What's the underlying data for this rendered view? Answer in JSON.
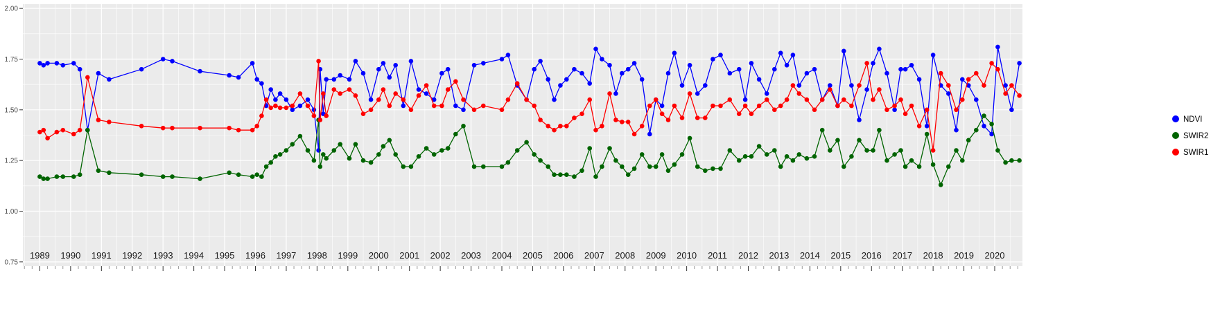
{
  "chart_data": {
    "type": "line",
    "title": "",
    "xlabel": "",
    "ylabel": "",
    "grid": true,
    "legend_position": "right",
    "panel_background": "#ebebeb",
    "grid_color": "#ffffff",
    "xlim": [
      1988.45,
      2020.9
    ],
    "ylim": [
      0.75,
      2.0
    ],
    "x_tick_labels": [
      1989,
      1990,
      1991,
      1992,
      1993,
      1994,
      1995,
      1996,
      1997,
      1998,
      1999,
      2000,
      2001,
      2002,
      2003,
      2004,
      2005,
      2006,
      2007,
      2008,
      2009,
      2010,
      2011,
      2012,
      2013,
      2014,
      2015,
      2016,
      2017,
      2018,
      2019,
      2020
    ],
    "y_tick_labels": [
      "2.00",
      "1.75",
      "1.50",
      "1.25",
      "1.00",
      "0.75"
    ],
    "y_tick_values": [
      2.0,
      1.75,
      1.5,
      1.25,
      1.0,
      0.75
    ],
    "x": [
      1989.0,
      1989.12,
      1989.25,
      1989.55,
      1989.75,
      1990.1,
      1990.3,
      1990.55,
      1990.9,
      1991.25,
      1992.3,
      1993.0,
      1993.3,
      1994.2,
      1995.15,
      1995.45,
      1995.9,
      1996.05,
      1996.2,
      1996.35,
      1996.5,
      1996.65,
      1996.8,
      1997.0,
      1997.2,
      1997.45,
      1997.7,
      1997.9,
      1998.05,
      1998.1,
      1998.2,
      1998.3,
      1998.55,
      1998.75,
      1999.05,
      1999.25,
      1999.5,
      1999.75,
      2000.0,
      2000.15,
      2000.35,
      2000.55,
      2000.8,
      2001.05,
      2001.3,
      2001.55,
      2001.8,
      2002.05,
      2002.25,
      2002.5,
      2002.75,
      2003.1,
      2003.4,
      2004.0,
      2004.2,
      2004.5,
      2004.8,
      2005.05,
      2005.25,
      2005.5,
      2005.7,
      2005.9,
      2006.1,
      2006.35,
      2006.6,
      2006.85,
      2007.05,
      2007.25,
      2007.5,
      2007.7,
      2007.9,
      2008.1,
      2008.3,
      2008.55,
      2008.8,
      2009.0,
      2009.2,
      2009.4,
      2009.6,
      2009.85,
      2010.1,
      2010.35,
      2010.6,
      2010.85,
      2011.1,
      2011.4,
      2011.7,
      2011.9,
      2012.1,
      2012.35,
      2012.6,
      2012.85,
      2013.05,
      2013.25,
      2013.45,
      2013.65,
      2013.9,
      2014.15,
      2014.4,
      2014.65,
      2014.9,
      2015.1,
      2015.35,
      2015.6,
      2015.85,
      2016.05,
      2016.25,
      2016.5,
      2016.75,
      2016.95,
      2017.1,
      2017.3,
      2017.55,
      2017.8,
      2018.0,
      2018.25,
      2018.5,
      2018.75,
      2018.95,
      2019.15,
      2019.4,
      2019.65,
      2019.9,
      2020.1,
      2020.35,
      2020.55,
      2020.8
    ],
    "series": [
      {
        "name": "NDVI",
        "color": "#0000ff",
        "values": [
          1.73,
          1.72,
          1.73,
          1.73,
          1.72,
          1.73,
          1.7,
          1.4,
          1.68,
          1.65,
          1.7,
          1.75,
          1.74,
          1.69,
          1.67,
          1.66,
          1.73,
          1.65,
          1.63,
          1.52,
          1.6,
          1.55,
          1.58,
          1.55,
          1.5,
          1.52,
          1.55,
          1.5,
          1.3,
          1.7,
          1.48,
          1.65,
          1.65,
          1.67,
          1.65,
          1.74,
          1.68,
          1.55,
          1.7,
          1.73,
          1.66,
          1.72,
          1.52,
          1.74,
          1.6,
          1.58,
          1.55,
          1.68,
          1.7,
          1.52,
          1.5,
          1.72,
          1.73,
          1.75,
          1.77,
          1.62,
          1.55,
          1.7,
          1.74,
          1.65,
          1.55,
          1.62,
          1.65,
          1.7,
          1.68,
          1.63,
          1.8,
          1.75,
          1.72,
          1.58,
          1.68,
          1.7,
          1.73,
          1.65,
          1.38,
          1.55,
          1.52,
          1.68,
          1.78,
          1.62,
          1.72,
          1.58,
          1.62,
          1.75,
          1.77,
          1.68,
          1.7,
          1.55,
          1.73,
          1.65,
          1.58,
          1.7,
          1.78,
          1.72,
          1.77,
          1.62,
          1.68,
          1.7,
          1.55,
          1.62,
          1.52,
          1.79,
          1.62,
          1.45,
          1.6,
          1.73,
          1.8,
          1.68,
          1.5,
          1.7,
          1.7,
          1.72,
          1.65,
          1.42,
          1.77,
          1.62,
          1.58,
          1.4,
          1.65,
          1.62,
          1.55,
          1.42,
          1.38,
          1.81,
          1.62,
          1.5,
          1.73
        ]
      },
      {
        "name": "SWIR2",
        "color": "#006400",
        "values": [
          1.17,
          1.16,
          1.16,
          1.17,
          1.17,
          1.17,
          1.18,
          1.4,
          1.2,
          1.19,
          1.18,
          1.17,
          1.17,
          1.16,
          1.19,
          1.18,
          1.17,
          1.18,
          1.17,
          1.22,
          1.24,
          1.27,
          1.28,
          1.3,
          1.33,
          1.37,
          1.3,
          1.25,
          1.45,
          1.22,
          1.28,
          1.26,
          1.3,
          1.33,
          1.26,
          1.33,
          1.25,
          1.24,
          1.28,
          1.32,
          1.35,
          1.28,
          1.22,
          1.22,
          1.27,
          1.31,
          1.28,
          1.3,
          1.31,
          1.38,
          1.42,
          1.22,
          1.22,
          1.22,
          1.24,
          1.3,
          1.34,
          1.28,
          1.25,
          1.22,
          1.18,
          1.18,
          1.18,
          1.17,
          1.2,
          1.31,
          1.17,
          1.22,
          1.31,
          1.25,
          1.22,
          1.18,
          1.21,
          1.28,
          1.22,
          1.22,
          1.28,
          1.2,
          1.23,
          1.28,
          1.36,
          1.22,
          1.2,
          1.21,
          1.21,
          1.3,
          1.25,
          1.27,
          1.27,
          1.32,
          1.28,
          1.3,
          1.22,
          1.27,
          1.25,
          1.28,
          1.26,
          1.27,
          1.4,
          1.3,
          1.35,
          1.22,
          1.27,
          1.35,
          1.3,
          1.3,
          1.4,
          1.25,
          1.28,
          1.3,
          1.22,
          1.25,
          1.22,
          1.38,
          1.23,
          1.13,
          1.22,
          1.3,
          1.25,
          1.35,
          1.4,
          1.47,
          1.43,
          1.3,
          1.24,
          1.25,
          1.25
        ]
      },
      {
        "name": "SWIR1",
        "color": "#ff0000",
        "values": [
          1.39,
          1.4,
          1.36,
          1.39,
          1.4,
          1.38,
          1.4,
          1.66,
          1.45,
          1.44,
          1.42,
          1.41,
          1.41,
          1.41,
          1.41,
          1.4,
          1.4,
          1.42,
          1.47,
          1.55,
          1.51,
          1.52,
          1.51,
          1.51,
          1.52,
          1.58,
          1.52,
          1.47,
          1.74,
          1.45,
          1.58,
          1.47,
          1.6,
          1.58,
          1.6,
          1.57,
          1.48,
          1.5,
          1.55,
          1.6,
          1.52,
          1.58,
          1.55,
          1.5,
          1.57,
          1.62,
          1.52,
          1.52,
          1.6,
          1.64,
          1.55,
          1.5,
          1.52,
          1.5,
          1.55,
          1.63,
          1.55,
          1.52,
          1.45,
          1.42,
          1.4,
          1.42,
          1.42,
          1.46,
          1.48,
          1.55,
          1.4,
          1.42,
          1.58,
          1.45,
          1.44,
          1.44,
          1.38,
          1.42,
          1.52,
          1.55,
          1.48,
          1.45,
          1.52,
          1.46,
          1.58,
          1.46,
          1.46,
          1.52,
          1.52,
          1.55,
          1.48,
          1.52,
          1.48,
          1.52,
          1.55,
          1.5,
          1.52,
          1.55,
          1.62,
          1.58,
          1.55,
          1.5,
          1.55,
          1.6,
          1.52,
          1.55,
          1.52,
          1.62,
          1.73,
          1.55,
          1.6,
          1.5,
          1.52,
          1.55,
          1.48,
          1.52,
          1.42,
          1.5,
          1.3,
          1.68,
          1.62,
          1.5,
          1.55,
          1.65,
          1.68,
          1.62,
          1.73,
          1.7,
          1.58,
          1.62,
          1.57
        ]
      }
    ],
    "legend": {
      "entries": [
        {
          "label": "NDVI",
          "color": "#0000ff"
        },
        {
          "label": "SWIR2",
          "color": "#006400"
        },
        {
          "label": "SWIR1",
          "color": "#ff0000"
        }
      ]
    }
  }
}
